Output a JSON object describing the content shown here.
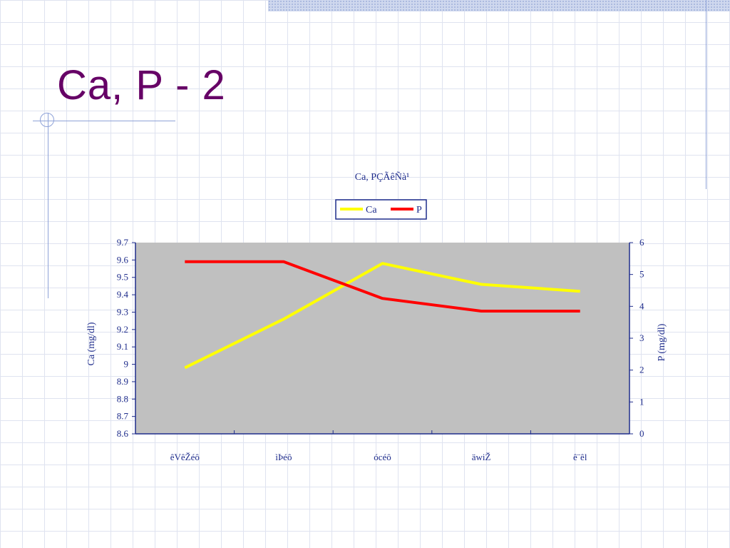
{
  "slide": {
    "title": "Ca, P - 2"
  },
  "colors": {
    "title": "#660066",
    "axis": "#1f2d8c",
    "plot_bg": "#c0c0c0",
    "ca_line": "#ffff00",
    "p_line": "#ff0000"
  },
  "chart_data": {
    "type": "line",
    "title": "Ca, PÇÃêÑà¹",
    "categories": [
      "êVêŽéô",
      "ìÞéô",
      "ócéô",
      "äwiŽ",
      "ê¨êl"
    ],
    "series": [
      {
        "name": "Ca",
        "axis": "left",
        "values": [
          8.98,
          9.26,
          9.58,
          9.46,
          9.42
        ]
      },
      {
        "name": "P",
        "axis": "right",
        "values": [
          5.4,
          5.4,
          4.25,
          3.85,
          3.85
        ]
      }
    ],
    "ylabel_left": "Ca (mg/dl)",
    "ylabel_right": "P (mg/dl)",
    "ylim_left": [
      8.6,
      9.7
    ],
    "yticks_left": [
      "8.6",
      "8.7",
      "8.8",
      "8.9",
      "9",
      "9.1",
      "9.2",
      "9.3",
      "9.4",
      "9.5",
      "9.6",
      "9.7"
    ],
    "ylim_right": [
      0,
      6
    ],
    "yticks_right": [
      "0",
      "1",
      "2",
      "3",
      "4",
      "5",
      "6"
    ],
    "legend": "top",
    "grid": false
  }
}
